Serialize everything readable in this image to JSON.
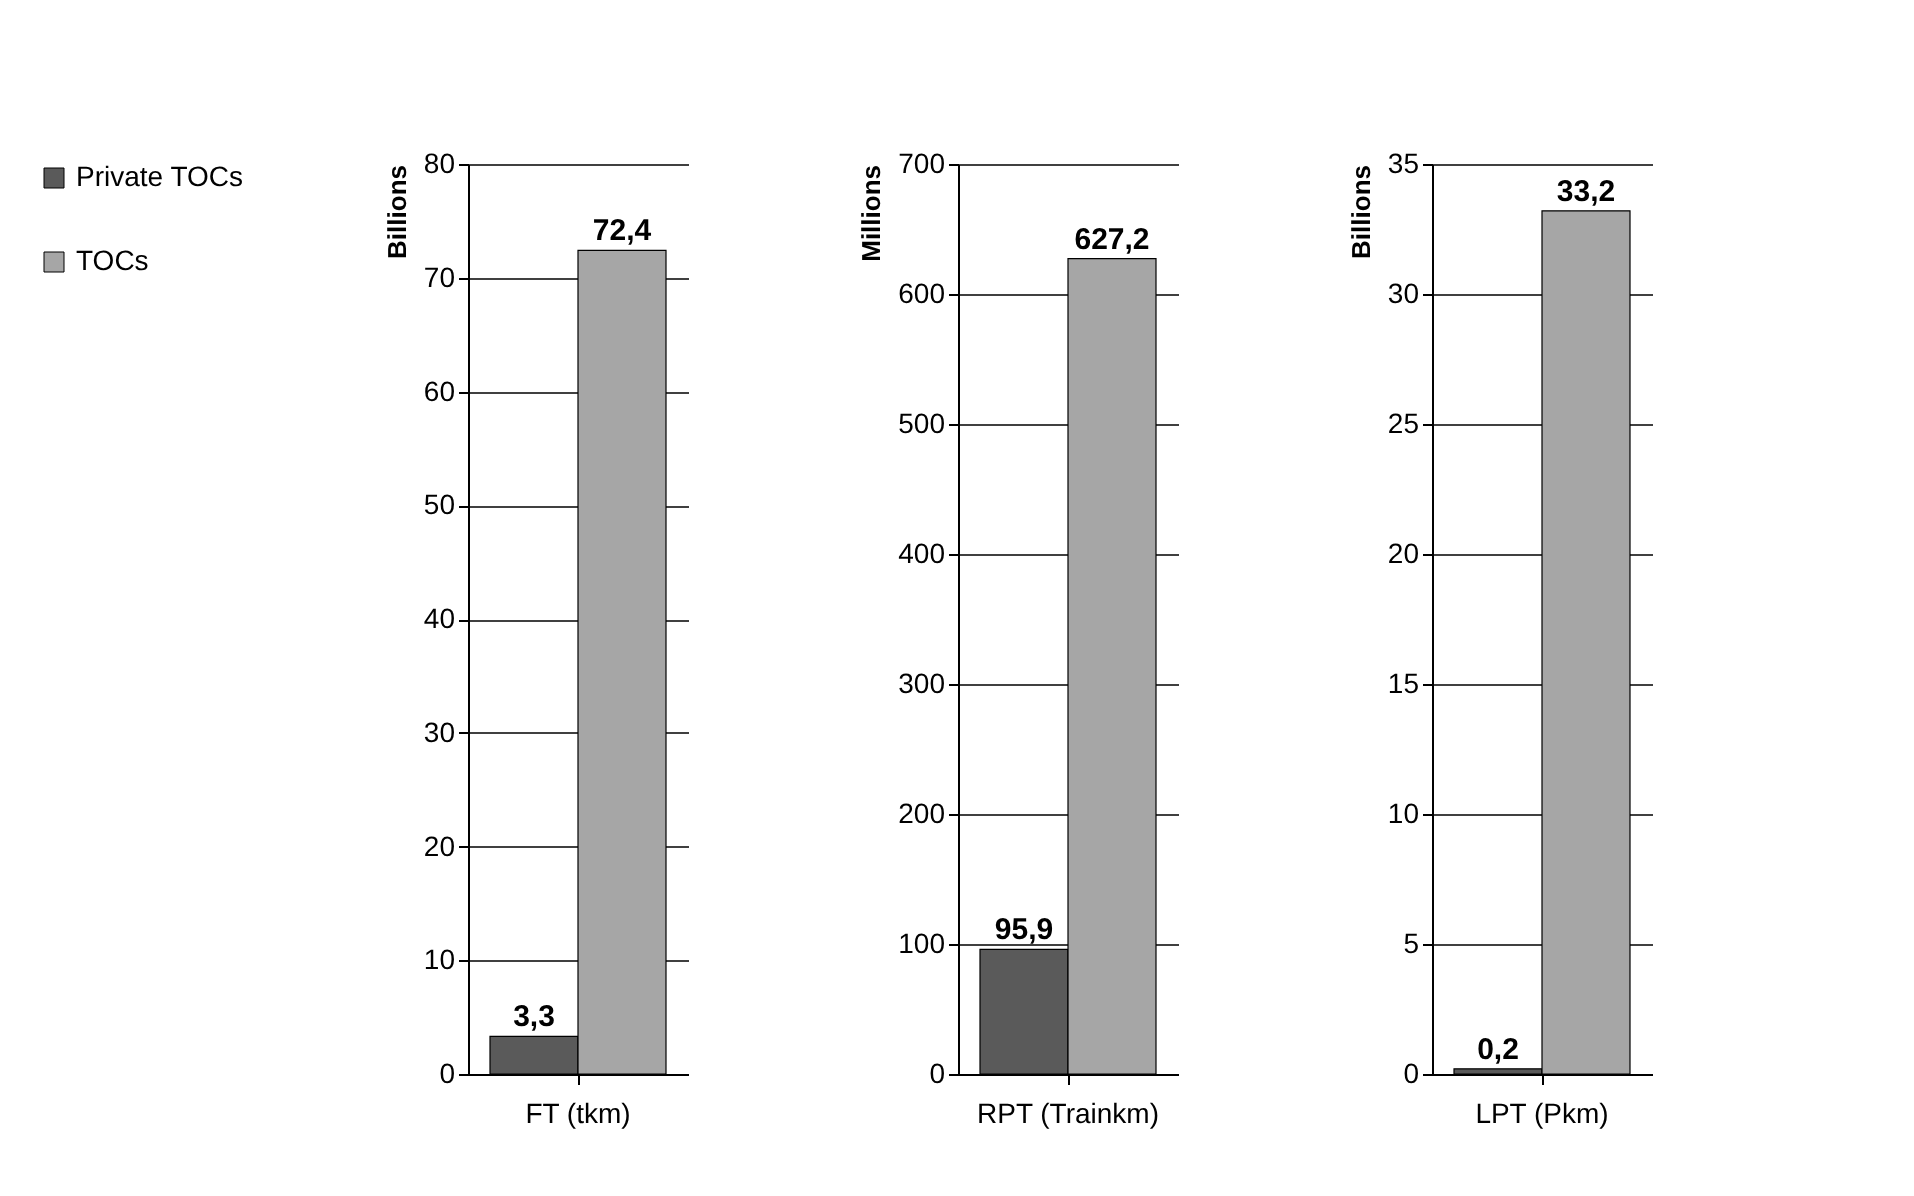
{
  "chart_data": [
    {
      "type": "bar",
      "categories": [
        "FT (tkm)"
      ],
      "ylabel": "Billions",
      "ylim": [
        0,
        80
      ],
      "yticks": [
        0,
        10,
        20,
        30,
        40,
        50,
        60,
        70,
        80
      ],
      "grid": "y",
      "legend": "left",
      "series": [
        {
          "name": "Private TOCs",
          "color": "#5a5a5a",
          "values": [
            3.3
          ],
          "value_labels": [
            "3,3"
          ]
        },
        {
          "name": "TOCs",
          "color": "#a6a6a6",
          "values": [
            72.4
          ],
          "value_labels": [
            "72,4"
          ]
        }
      ]
    },
    {
      "type": "bar",
      "categories": [
        "RPT (Trainkm)"
      ],
      "ylabel": "Millions",
      "ylim": [
        0,
        700
      ],
      "yticks": [
        0,
        100,
        200,
        300,
        400,
        500,
        600,
        700
      ],
      "grid": "y",
      "series": [
        {
          "color": "#5a5a5a",
          "values": [
            95.9
          ],
          "value_labels": [
            "95,9"
          ]
        },
        {
          "color": "#a6a6a6",
          "values": [
            627.2
          ],
          "value_labels": [
            "627,2"
          ]
        }
      ]
    },
    {
      "type": "bar",
      "categories": [
        "LPT (Pkm)"
      ],
      "ylabel": "Billions",
      "ylim": [
        0,
        35
      ],
      "yticks": [
        0,
        5,
        10,
        15,
        20,
        25,
        30,
        35
      ],
      "grid": "y",
      "series": [
        {
          "color": "#5a5a5a",
          "values": [
            0.2
          ],
          "value_labels": [
            "0,2"
          ]
        },
        {
          "color": "#a6a6a6",
          "values": [
            33.2
          ],
          "value_labels": [
            "33,2"
          ]
        }
      ]
    }
  ]
}
